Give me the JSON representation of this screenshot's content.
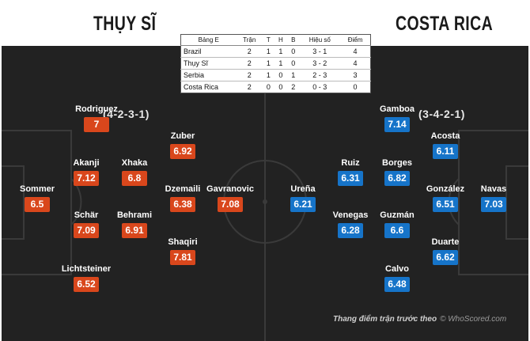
{
  "header": {
    "team_left": "THỤY SĨ",
    "team_right": "COSTA RICA"
  },
  "formations": {
    "left": "(4-2-3-1)",
    "right": "(3-4-2-1)"
  },
  "standings": {
    "columns": [
      "Bảng E",
      "Trận",
      "T",
      "H",
      "B",
      "Hiệu số",
      "Điểm"
    ],
    "rows": [
      [
        "Brazil",
        "2",
        "1",
        "1",
        "0",
        "3 - 1",
        "4"
      ],
      [
        "Thụy Sĩ",
        "2",
        "1",
        "1",
        "0",
        "3 - 2",
        "4"
      ],
      [
        "Serbia",
        "2",
        "1",
        "0",
        "1",
        "2 - 3",
        "3"
      ],
      [
        "Costa Rica",
        "2",
        "0",
        "0",
        "2",
        "0 - 3",
        "0"
      ]
    ]
  },
  "players_left": [
    {
      "name": "Rodriguez",
      "rating": "7"
    },
    {
      "name": "Zuber",
      "rating": "6.92"
    },
    {
      "name": "Akanji",
      "rating": "7.12"
    },
    {
      "name": "Xhaka",
      "rating": "6.8"
    },
    {
      "name": "Sommer",
      "rating": "6.5"
    },
    {
      "name": "Dzemaili",
      "rating": "6.38"
    },
    {
      "name": "Gavranovic",
      "rating": "7.08"
    },
    {
      "name": "Schär",
      "rating": "7.09"
    },
    {
      "name": "Behrami",
      "rating": "6.91"
    },
    {
      "name": "Shaqiri",
      "rating": "7.81"
    },
    {
      "name": "Lichtsteiner",
      "rating": "6.52"
    }
  ],
  "players_right": [
    {
      "name": "Gamboa",
      "rating": "7.14"
    },
    {
      "name": "Acosta",
      "rating": "6.11"
    },
    {
      "name": "Ruiz",
      "rating": "6.31"
    },
    {
      "name": "Borges",
      "rating": "6.82"
    },
    {
      "name": "Ureña",
      "rating": "6.21"
    },
    {
      "name": "González",
      "rating": "6.51"
    },
    {
      "name": "Navas",
      "rating": "7.03"
    },
    {
      "name": "Venegas",
      "rating": "6.28"
    },
    {
      "name": "Guzmán",
      "rating": "6.6"
    },
    {
      "name": "Duarte",
      "rating": "6.62"
    },
    {
      "name": "Calvo",
      "rating": "6.48"
    }
  ],
  "caption": {
    "text": "Thang điểm trận trước theo",
    "credit": "© WhoScored.com"
  },
  "colors": {
    "left_team": "#d9471c",
    "right_team": "#1674c9",
    "pitch": "#222222"
  }
}
